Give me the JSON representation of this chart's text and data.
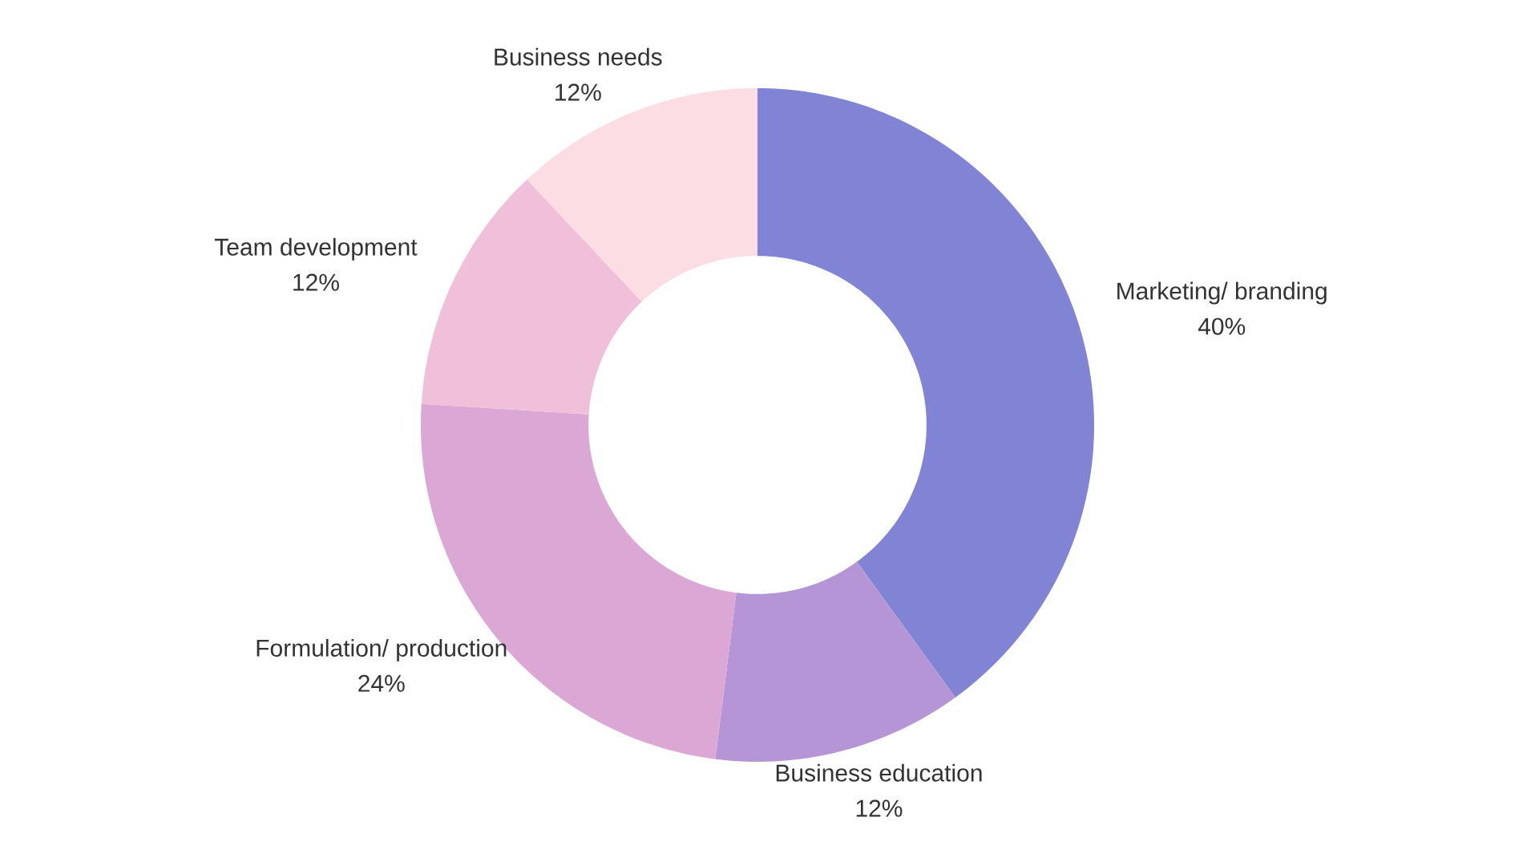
{
  "chart_data": {
    "type": "donut",
    "categories": [
      "Marketing/ branding",
      "Business education",
      "Formulation/ production",
      "Team development",
      "Business needs"
    ],
    "values": [
      40,
      12,
      24,
      12,
      12
    ],
    "value_labels": [
      "40%",
      "12%",
      "24%",
      "12%",
      "12%"
    ],
    "colors": [
      "#8184d4",
      "#b595d6",
      "#dba8d6",
      "#f0c0da",
      "#fcdde4"
    ]
  }
}
